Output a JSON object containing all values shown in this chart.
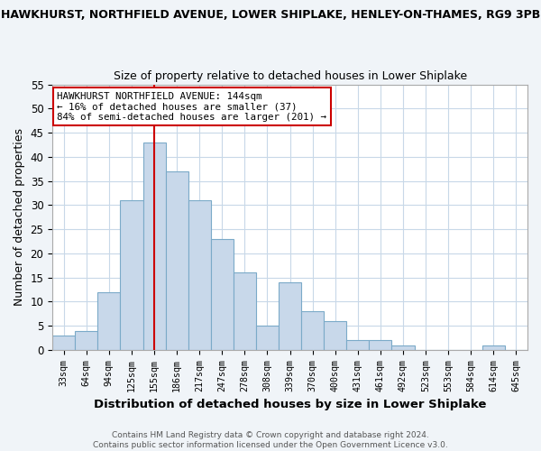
{
  "title_top": "HAWKHURST, NORTHFIELD AVENUE, LOWER SHIPLAKE, HENLEY-ON-THAMES, RG9 3PB",
  "title_sub": "Size of property relative to detached houses in Lower Shiplake",
  "xlabel": "Distribution of detached houses by size in Lower Shiplake",
  "ylabel": "Number of detached properties",
  "bin_labels": [
    "33sqm",
    "64sqm",
    "94sqm",
    "125sqm",
    "155sqm",
    "186sqm",
    "217sqm",
    "247sqm",
    "278sqm",
    "308sqm",
    "339sqm",
    "370sqm",
    "400sqm",
    "431sqm",
    "461sqm",
    "492sqm",
    "523sqm",
    "553sqm",
    "584sqm",
    "614sqm",
    "645sqm"
  ],
  "bar_heights": [
    3,
    4,
    12,
    31,
    43,
    37,
    31,
    23,
    16,
    5,
    14,
    8,
    6,
    2,
    2,
    1,
    0,
    0,
    0,
    1,
    0
  ],
  "bar_color": "#c8d8ea",
  "bar_edge_color": "#7baac8",
  "vline_x_index": 4,
  "vline_color": "#cc0000",
  "ylim": [
    0,
    55
  ],
  "yticks": [
    0,
    5,
    10,
    15,
    20,
    25,
    30,
    35,
    40,
    45,
    50,
    55
  ],
  "annotation_line1": "HAWKHURST NORTHFIELD AVENUE: 144sqm",
  "annotation_line2": "← 16% of detached houses are smaller (37)",
  "annotation_line3": "84% of semi-detached houses are larger (201) →",
  "annotation_box_color": "#ffffff",
  "annotation_box_edge": "#cc0000",
  "footer_text": "Contains HM Land Registry data © Crown copyright and database right 2024.\nContains public sector information licensed under the Open Government Licence v3.0.",
  "bg_color": "#f0f4f8",
  "plot_bg_color": "#ffffff",
  "grid_color": "#c8d8e8"
}
